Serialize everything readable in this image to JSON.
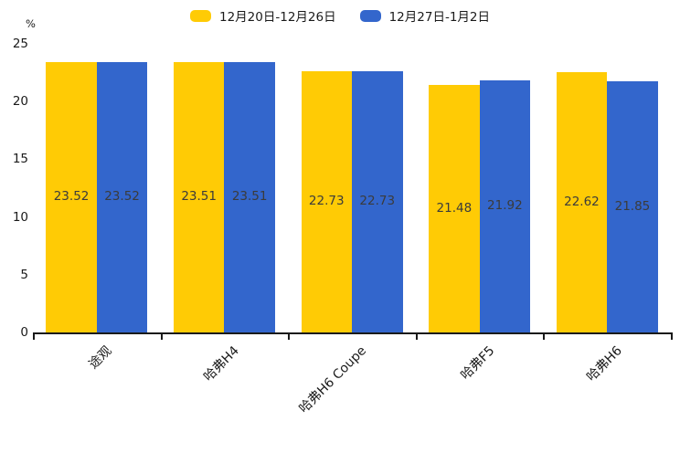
{
  "chart_data": {
    "type": "bar",
    "title": "",
    "xlabel": "",
    "ylabel": "%",
    "categories": [
      "途观",
      "哈弗H4",
      "哈弗H6 Coupe",
      "哈弗F5",
      "哈弗H6"
    ],
    "series": [
      {
        "name": "12月20日-12月26日",
        "color": "#FFCB05",
        "values": [
          23.52,
          23.51,
          22.73,
          21.48,
          22.62
        ]
      },
      {
        "name": "12月27日-1月2日",
        "color": "#3366CC",
        "values": [
          23.52,
          23.51,
          22.73,
          21.92,
          21.85
        ]
      }
    ],
    "value_labels": {
      "shown": true,
      "color": "#3b3b3b"
    },
    "ylim": [
      0,
      25
    ],
    "yticks": [
      0,
      5,
      10,
      15,
      20,
      25
    ],
    "grid": false,
    "legend_position": "top-center",
    "xtick_label_rotation_deg": -45,
    "colors": {
      "axis": "#1a1a1a",
      "tick_label": "#1a1a1a",
      "background": "#ffffff"
    }
  }
}
